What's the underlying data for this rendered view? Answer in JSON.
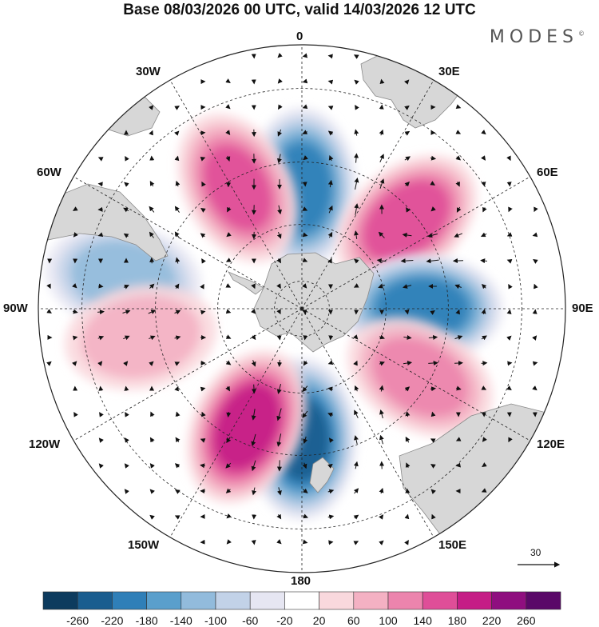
{
  "title": "Base 08/03/2026 00 UTC, valid 14/03/2026 12 UTC",
  "brand": "MODES",
  "brand_mark": "©",
  "longitude_labels": {
    "top": "0",
    "top_left": "30W",
    "top_right": "30E",
    "upper_left": "60W",
    "upper_right": "60E",
    "left": "90W",
    "right": "90E",
    "lower_left": "120W",
    "lower_right": "120E",
    "bottom_left": "150W",
    "bottom_right": "150E",
    "bottom": "180"
  },
  "reference_vector": {
    "label": "30"
  },
  "colorbar": {
    "levels": [
      "-260",
      "-220",
      "-180",
      "-140",
      "-100",
      "-60",
      "-20",
      "20",
      "60",
      "100",
      "140",
      "180",
      "220",
      "260"
    ],
    "colors": [
      "#0d3b5e",
      "#1a5d8f",
      "#2f7fb8",
      "#5a9fcc",
      "#92bbdc",
      "#c2d2e8",
      "#e6e6f2",
      "#ffffff",
      "#f9d8dd",
      "#f4b1c3",
      "#ec84ad",
      "#df4e98",
      "#c51d86",
      "#8f0e7f",
      "#5a0868"
    ]
  },
  "colors": {
    "land": "#d7d7d7",
    "coast": "#8a8a8a",
    "grid": "#222222",
    "arrow": "#111111",
    "neg": "#2f7fb8",
    "pos": "#df4e98"
  },
  "chart_data": {
    "type": "heatmap",
    "projection": "south polar stereographic",
    "field": "anomaly (shaded) with wind vectors",
    "color_levels": [
      -260,
      -220,
      -180,
      -140,
      -100,
      -60,
      -20,
      20,
      60,
      100,
      140,
      180,
      220,
      260
    ],
    "centers": [
      {
        "lon": 0,
        "lat": -48,
        "value": -200
      },
      {
        "lon": -28,
        "lat": -43,
        "value": 150
      },
      {
        "lon": 50,
        "lat": -43,
        "value": 170
      },
      {
        "lon": 90,
        "lat": -48,
        "value": -210
      },
      {
        "lon": 120,
        "lat": -43,
        "value": 120
      },
      {
        "lon": 180,
        "lat": -45,
        "value": -230
      },
      {
        "lon": -155,
        "lat": -45,
        "value": 200
      },
      {
        "lon": -80,
        "lat": -30,
        "value": -130
      },
      {
        "lon": -100,
        "lat": -35,
        "value": 90
      }
    ],
    "reference_vector_magnitude": 30
  }
}
